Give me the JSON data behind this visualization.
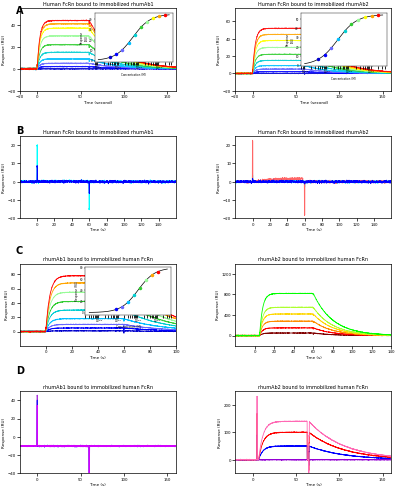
{
  "figure_bg": "#ffffff",
  "panel_bg": "#ffffff",
  "row_labels": [
    "A",
    "B",
    "C",
    "D"
  ],
  "titles": [
    [
      "Human FcRn bound to immobilized rhumAb1",
      "Human FcRn bound to immobilized rhumAb2"
    ],
    [
      "Human FcRn bound to immobilized rhumAb1",
      "Human FcRn bound to immobilized rhumAb2"
    ],
    [
      "rhumAb1 bound to immobilized human FcRn",
      "rhumAb2 bound to immobilized human FcRn"
    ],
    [
      "rhumAb1 bound to immobilized human FcRn",
      "rhumAb2 bound to immobilized human FcRn"
    ]
  ],
  "xlabels": [
    [
      "Time (second)",
      "Time (second)"
    ],
    [
      "Time (s)",
      "Time (s)"
    ],
    [
      "Time (s)",
      "Time (s)"
    ],
    [
      "Time (s)",
      "Time (s)"
    ]
  ],
  "ylabels": [
    [
      "Response (RU)",
      "Response (RU)"
    ],
    [
      "Response (RU)",
      "Response (RU)"
    ],
    [
      "Response (RU)",
      "Response (RU)"
    ],
    [
      "Response (RU)",
      "Response (RU)"
    ]
  ],
  "colors_A1": [
    "#0000cd",
    "#0000ff",
    "#6666ff",
    "#00bfff",
    "#00ced1",
    "#32cd32",
    "#98fb98",
    "#ffff00",
    "#ffa500",
    "#ff0000"
  ],
  "colors_A2": [
    "#0000cd",
    "#0000ff",
    "#6666ff",
    "#00bfff",
    "#00ced1",
    "#32cd32",
    "#98fb98",
    "#ffff00",
    "#ffa500",
    "#ff0000"
  ],
  "colors_B1": [
    "#00ffff",
    "#0000ff"
  ],
  "colors_B2": [
    "#00ffff",
    "#ff6666",
    "#0000ff"
  ],
  "colors_C1": [
    "#0000cd",
    "#0000ff",
    "#6666ff",
    "#00bfff",
    "#00ced1",
    "#32cd32",
    "#98fb98",
    "#ffa500",
    "#ff0000"
  ],
  "colors_C2": [
    "#800000",
    "#ff0000",
    "#ff8c00",
    "#ffd700",
    "#adff2f",
    "#00ff00"
  ],
  "colors_D1": [
    "#9400d3",
    "#0000ff",
    "#ff00ff"
  ],
  "colors_D2": [
    "#9400d3",
    "#0000ff",
    "#ff0000",
    "#ff69b4"
  ]
}
